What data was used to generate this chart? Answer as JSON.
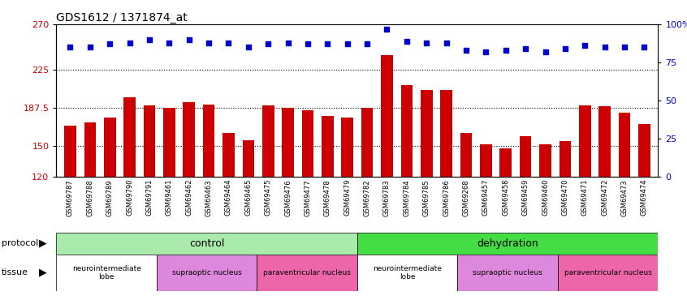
{
  "title": "GDS1612 / 1371874_at",
  "samples": [
    "GSM69787",
    "GSM69788",
    "GSM69789",
    "GSM69790",
    "GSM69791",
    "GSM69461",
    "GSM69462",
    "GSM69463",
    "GSM69464",
    "GSM69465",
    "GSM69475",
    "GSM69476",
    "GSM69477",
    "GSM69478",
    "GSM69479",
    "GSM69782",
    "GSM69783",
    "GSM69784",
    "GSM69785",
    "GSM69786",
    "GSM69268",
    "GSM69457",
    "GSM69458",
    "GSM69459",
    "GSM69460",
    "GSM69470",
    "GSM69471",
    "GSM69472",
    "GSM69473",
    "GSM69474"
  ],
  "bar_values": [
    170,
    173,
    178,
    198,
    190,
    188,
    193,
    191,
    163,
    156,
    190,
    188,
    185,
    180,
    178,
    188,
    240,
    210,
    205,
    205,
    163,
    152,
    148,
    160,
    152,
    155,
    190,
    189,
    183,
    172
  ],
  "percentile_values": [
    85,
    85,
    87,
    88,
    90,
    88,
    90,
    88,
    88,
    85,
    87,
    88,
    87,
    87,
    87,
    87,
    97,
    89,
    88,
    88,
    83,
    82,
    83,
    84,
    82,
    84,
    86,
    85,
    85,
    85
  ],
  "bar_color": "#CC0000",
  "dot_color": "#0000CC",
  "ylim_left": [
    120,
    270
  ],
  "ylim_right": [
    0,
    100
  ],
  "yticks_left": [
    120,
    150,
    187.5,
    225,
    270
  ],
  "yticks_right": [
    0,
    25,
    50,
    75,
    100
  ],
  "grid_values": [
    150,
    187.5,
    225
  ],
  "bar_width": 0.6,
  "bg_color": "#E8E8E8",
  "protocol_light_green": "#AAEAAA",
  "protocol_dark_green": "#44DD44",
  "tissue_white": "#FFFFFF",
  "tissue_purple": "#DD88DD",
  "tissue_pink": "#EE66AA"
}
